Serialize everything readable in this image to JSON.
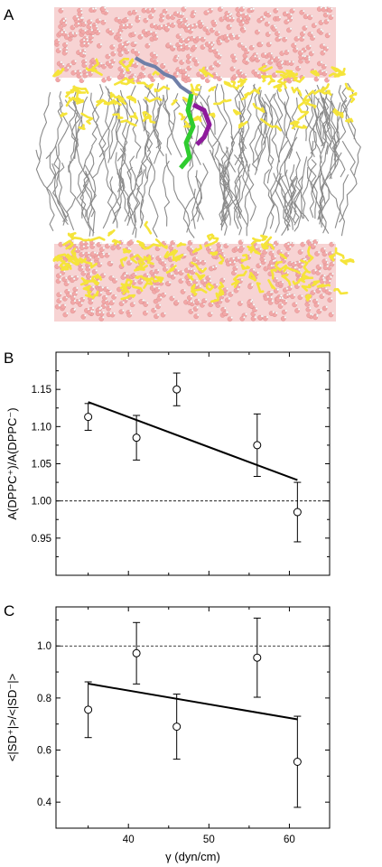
{
  "panels": {
    "a_label": "A",
    "b_label": "B",
    "c_label": "C"
  },
  "image_a": {
    "colors": {
      "water": "#f2a7a7",
      "headgroup": "#f5e43a",
      "lipid_tail": "#8a8a8a",
      "ligand_blue": "#6f7fa8",
      "ligand_green": "#2fcc2f",
      "ligand_purple": "#8e1a9c"
    }
  },
  "chart_data": [
    {
      "type": "scatter",
      "panel": "B",
      "x": [
        35,
        41,
        46,
        56,
        61
      ],
      "y": [
        1.113,
        1.085,
        1.15,
        1.075,
        0.985
      ],
      "yerr": [
        0.018,
        0.03,
        0.022,
        0.042,
        0.04
      ],
      "fit": {
        "x": [
          35,
          61
        ],
        "y": [
          1.133,
          1.028
        ]
      },
      "reference_line": 1.0,
      "xlabel": "",
      "ylabel": "A(DPPC⁺)/A(DPPC⁻)",
      "xlim": [
        31,
        65
      ],
      "ylim": [
        0.9,
        1.2
      ],
      "yticks": [
        0.95,
        1.0,
        1.05,
        1.1,
        1.15
      ],
      "ytick_labels": [
        "0.95",
        "1.00",
        "1.05",
        "1.10",
        "1.15"
      ],
      "xticks": [
        40,
        50,
        60
      ],
      "xtick_labels": [
        "",
        "",
        ""
      ]
    },
    {
      "type": "scatter",
      "panel": "C",
      "x": [
        35,
        41,
        46,
        56,
        61
      ],
      "y": [
        0.755,
        0.972,
        0.69,
        0.955,
        0.555
      ],
      "yerr": [
        0.107,
        0.118,
        0.125,
        0.152,
        0.175
      ],
      "fit": {
        "x": [
          35,
          61
        ],
        "y": [
          0.855,
          0.718
        ]
      },
      "reference_line": 1.0,
      "xlabel": "γ (dyn/cm)",
      "ylabel": "<|SD⁺|>/<|SD⁻|>",
      "xlim": [
        31,
        65
      ],
      "ylim": [
        0.3,
        1.15
      ],
      "yticks": [
        0.4,
        0.6,
        0.8,
        1.0
      ],
      "ytick_labels": [
        "0.4",
        "0.6",
        "0.8",
        "1.0"
      ],
      "xticks": [
        40,
        50,
        60
      ],
      "xtick_labels": [
        "40",
        "50",
        "60"
      ]
    }
  ]
}
